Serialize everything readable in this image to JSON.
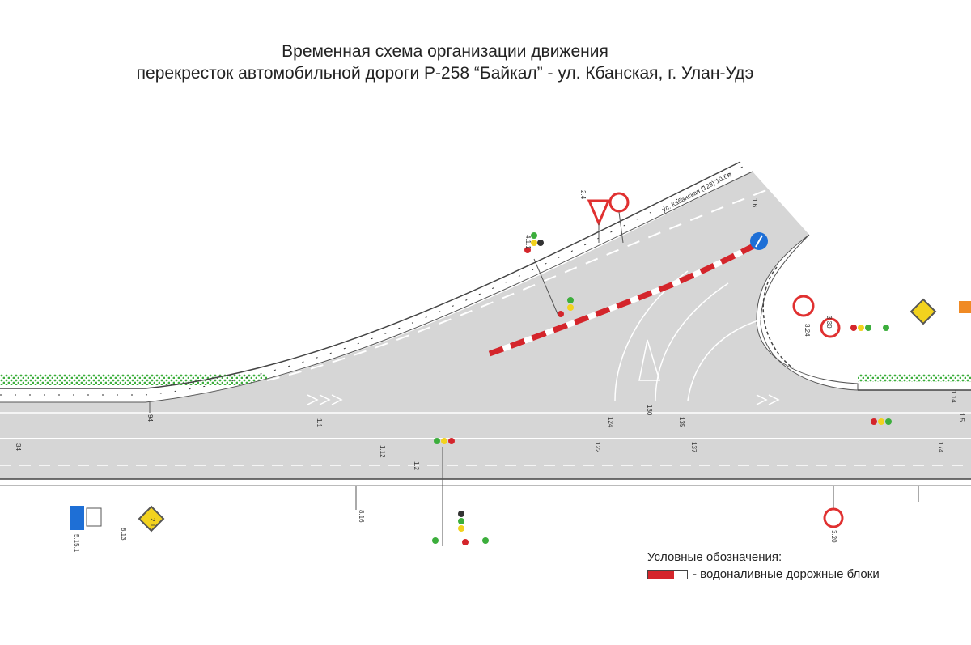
{
  "title": {
    "line1": "Временная схема организации движения",
    "line2": "перекресток автомобильной дороги Р-258 “Байкал” - ул. Кбанская, г. Улан-Удэ"
  },
  "road_label": "ул. Кабанская (123) 10.6м",
  "pickets": [
    "34",
    "94",
    "122",
    "124",
    "130",
    "135",
    "137",
    "174"
  ],
  "markings": [
    "1.1",
    "1.12",
    "1.2",
    "1.6",
    "1.14",
    "1.5"
  ],
  "signs": [
    "2.1",
    "2.4",
    "3.20",
    "3.24",
    "4.1.1",
    "5.15.1",
    "8.13",
    "8.16",
    "3.30"
  ],
  "legend": {
    "heading": "Условные обозначения:",
    "item": "- водоналивные дорожные блоки"
  },
  "colors": {
    "asphalt": "#d7d7d7",
    "green_strip": "#3cae3c",
    "barrier_red": "#d4252b",
    "sign_blue": "#1e6fd6"
  }
}
